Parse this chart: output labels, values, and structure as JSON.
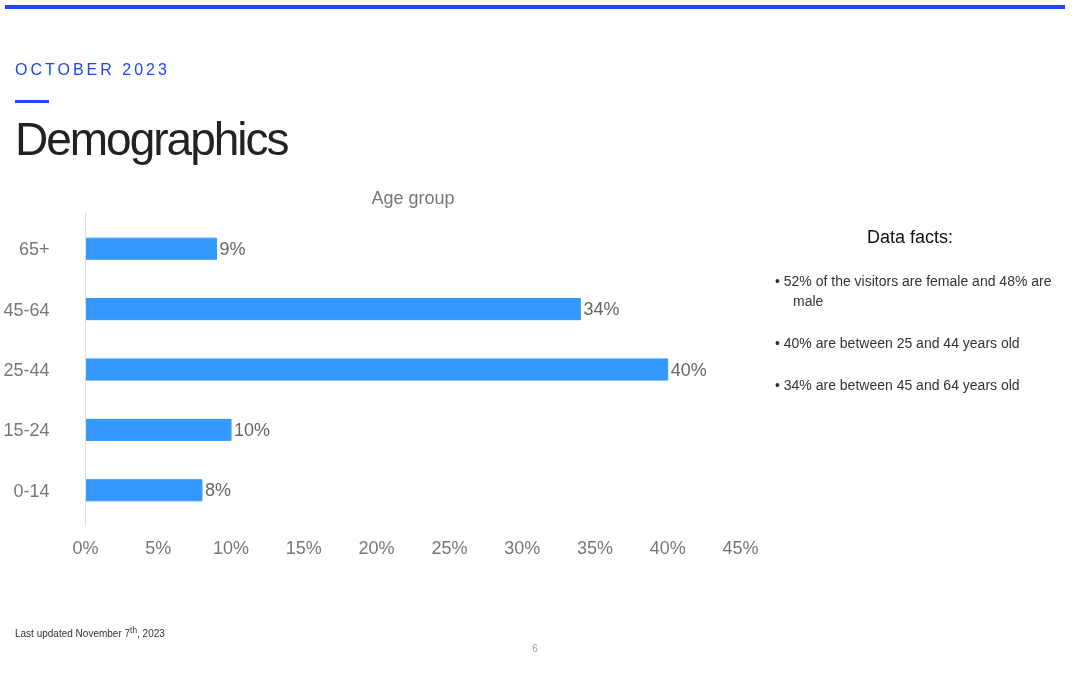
{
  "chart_data": {
    "type": "bar",
    "orientation": "horizontal",
    "title": "Demographics",
    "subtitle": "Age group",
    "categories": [
      "65+",
      "45-64",
      "25-44",
      "15-24",
      "0-14"
    ],
    "values": [
      9,
      34,
      40,
      10,
      8
    ],
    "value_labels": [
      "9%",
      "34%",
      "40%",
      "10%",
      "8%"
    ],
    "color": "#3399ff",
    "xlim": [
      0,
      45
    ],
    "xticks": [
      {
        "value": 0,
        "label": "0%"
      },
      {
        "value": 5,
        "label": "5%"
      },
      {
        "value": 10,
        "label": "10%"
      },
      {
        "value": 15,
        "label": "15%"
      },
      {
        "value": 20,
        "label": "20%"
      },
      {
        "value": 25,
        "label": "25%"
      },
      {
        "value": 30,
        "label": "30%"
      },
      {
        "value": 35,
        "label": "35%"
      },
      {
        "value": 40,
        "label": "40%"
      },
      {
        "value": 45,
        "label": "45%"
      }
    ],
    "grid": false,
    "annotations": [
      "OCTOBER 2023",
      "Data facts:",
      "• 52% of the visitors are female and 48% are male",
      "• 40% are between 25 and 44 years old",
      "• 34% are between 45 and 64 years old",
      "Last updated November 7$^{th}$, 2023",
      "6"
    ]
  }
}
